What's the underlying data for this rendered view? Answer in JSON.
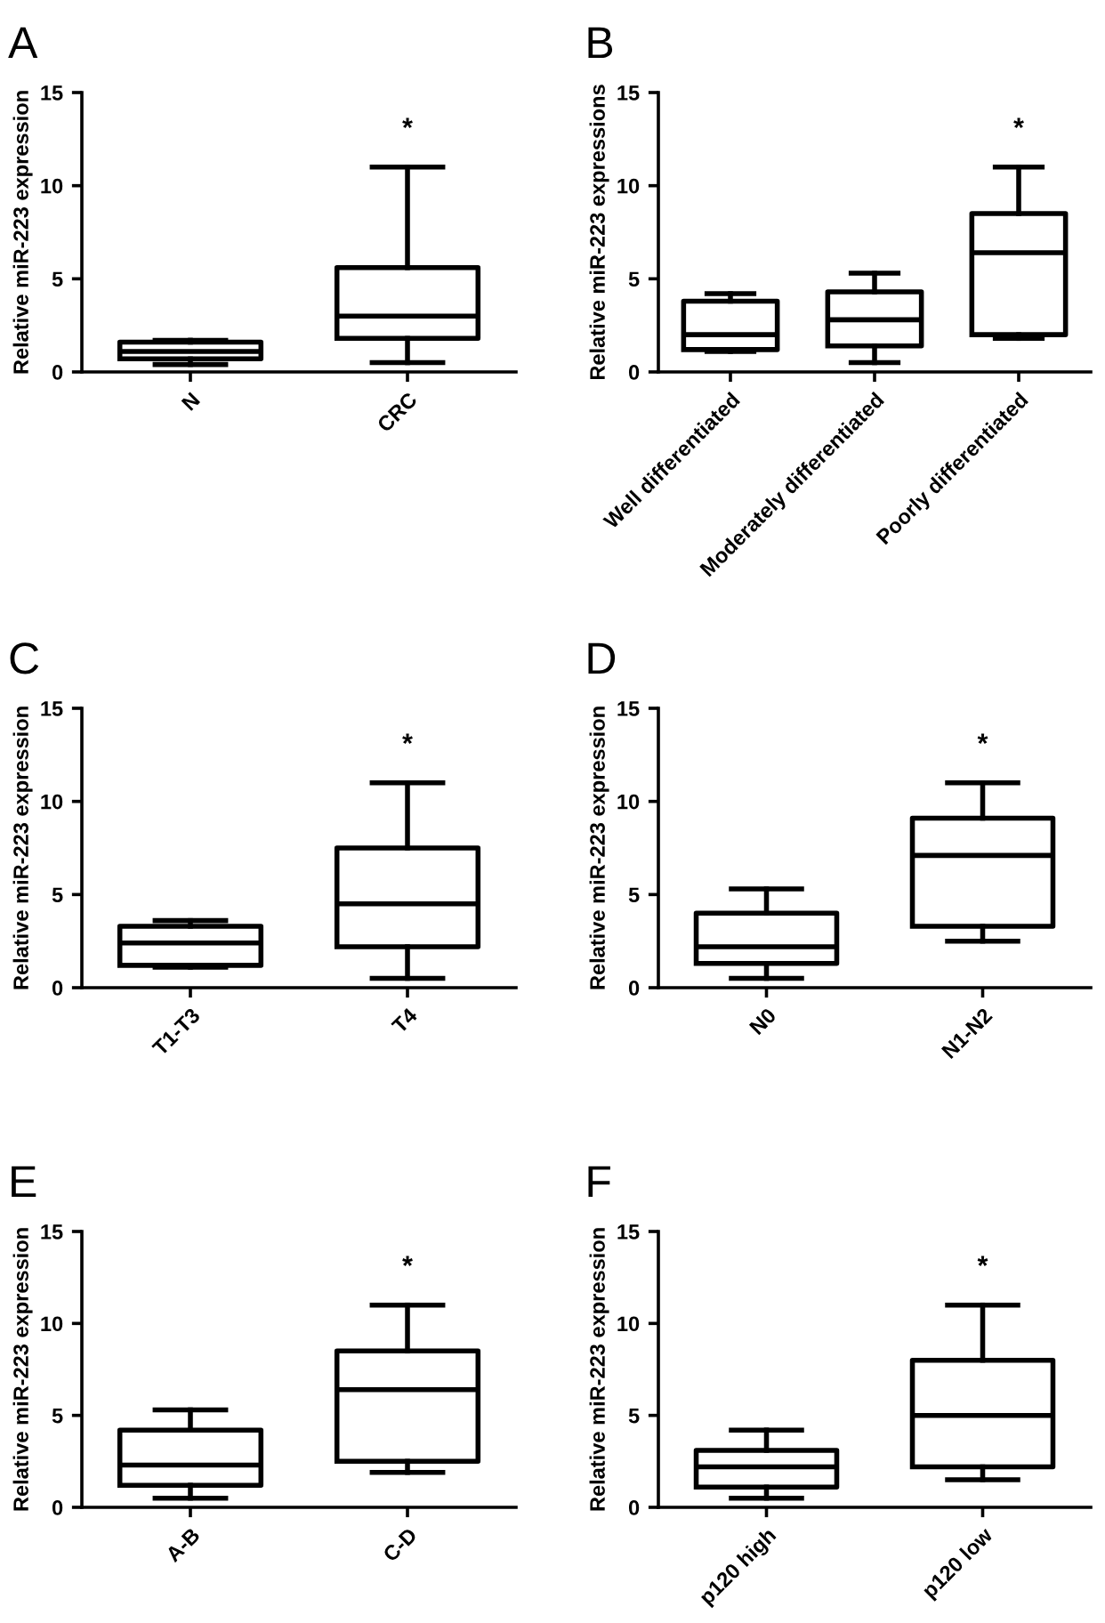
{
  "chart_data": [
    {
      "type": "box",
      "title": "A",
      "ylabel": "Relative miR-223 expression",
      "categories": [
        "N",
        "CRC"
      ],
      "ylim": [
        0,
        15
      ],
      "yticks": [
        0,
        5,
        10,
        15
      ],
      "boxes": [
        {
          "low": 0.4,
          "q1": 0.7,
          "median": 1.1,
          "q3": 1.6,
          "high": 1.7
        },
        {
          "low": 0.5,
          "q1": 1.8,
          "median": 3.0,
          "q3": 5.6,
          "high": 11.0
        }
      ],
      "annotations": [
        "*"
      ]
    },
    {
      "type": "box",
      "title": "B",
      "ylabel": "Relative miR-223 expressions",
      "categories": [
        "Well differentiated",
        "Moderately differentiated",
        "Poorly differentiated"
      ],
      "ylim": [
        0,
        15
      ],
      "yticks": [
        0,
        5,
        10,
        15
      ],
      "boxes": [
        {
          "low": 1.1,
          "q1": 1.2,
          "median": 2.0,
          "q3": 3.8,
          "high": 4.2
        },
        {
          "low": 0.5,
          "q1": 1.4,
          "median": 2.8,
          "q3": 4.3,
          "high": 5.3
        },
        {
          "low": 1.8,
          "q1": 2.0,
          "median": 6.4,
          "q3": 8.5,
          "high": 11.0
        }
      ],
      "annotations": [
        "*"
      ]
    },
    {
      "type": "box",
      "title": "C",
      "ylabel": "Relative miR-223 expression",
      "categories": [
        "T1-T3",
        "T4"
      ],
      "ylim": [
        0,
        15
      ],
      "yticks": [
        0,
        5,
        10,
        15
      ],
      "boxes": [
        {
          "low": 1.1,
          "q1": 1.2,
          "median": 2.4,
          "q3": 3.3,
          "high": 3.6
        },
        {
          "low": 0.5,
          "q1": 2.2,
          "median": 4.5,
          "q3": 7.5,
          "high": 11.0
        }
      ],
      "annotations": [
        "*"
      ]
    },
    {
      "type": "box",
      "title": "D",
      "ylabel": "Relative miR-223 expression",
      "categories": [
        "N0",
        "N1-N2"
      ],
      "ylim": [
        0,
        15
      ],
      "yticks": [
        0,
        5,
        10,
        15
      ],
      "boxes": [
        {
          "low": 0.5,
          "q1": 1.3,
          "median": 2.2,
          "q3": 4.0,
          "high": 5.3
        },
        {
          "low": 2.5,
          "q1": 3.3,
          "median": 7.1,
          "q3": 9.1,
          "high": 11.0
        }
      ],
      "annotations": [
        "*"
      ]
    },
    {
      "type": "box",
      "title": "E",
      "ylabel": "Relative miR-223 expression",
      "categories": [
        "A-B",
        "C-D"
      ],
      "ylim": [
        0,
        15
      ],
      "yticks": [
        0,
        5,
        10,
        15
      ],
      "boxes": [
        {
          "low": 0.5,
          "q1": 1.2,
          "median": 2.3,
          "q3": 4.2,
          "high": 5.3
        },
        {
          "low": 1.9,
          "q1": 2.5,
          "median": 6.4,
          "q3": 8.5,
          "high": 11.0
        }
      ],
      "annotations": [
        "*"
      ]
    },
    {
      "type": "box",
      "title": "F",
      "ylabel": "Relative miR-223 expression",
      "categories": [
        "p120 high",
        "p120 low"
      ],
      "ylim": [
        0,
        15
      ],
      "yticks": [
        0,
        5,
        10,
        15
      ],
      "boxes": [
        {
          "low": 0.5,
          "q1": 1.1,
          "median": 2.2,
          "q3": 3.1,
          "high": 4.2
        },
        {
          "low": 1.5,
          "q1": 2.2,
          "median": 5.0,
          "q3": 8.0,
          "high": 11.0
        }
      ],
      "annotations": [
        "*"
      ]
    }
  ]
}
